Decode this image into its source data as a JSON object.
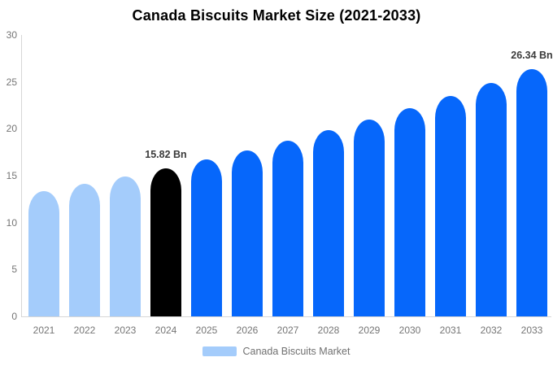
{
  "title": "Canada Biscuits Market Size (2021-2033)",
  "legend": {
    "label": "Canada Biscuits Market"
  },
  "colors": {
    "past": "#a4ccfb",
    "current": "#000000",
    "forecast": "#0667fb",
    "axis_line": "#d6d6d6",
    "tick_text": "#757575",
    "value_label_text": "#3b3b3b"
  },
  "chart_data": {
    "type": "bar",
    "title": "Canada Biscuits Market Size (2021-2033)",
    "xlabel": "",
    "ylabel": "",
    "categories": [
      "2021",
      "2022",
      "2023",
      "2024",
      "2025",
      "2026",
      "2027",
      "2028",
      "2029",
      "2030",
      "2031",
      "2032",
      "2033"
    ],
    "values": [
      13.34,
      14.12,
      14.94,
      15.82,
      16.74,
      17.72,
      18.75,
      19.84,
      21.0,
      22.22,
      23.52,
      24.89,
      26.34
    ],
    "bar_roles": [
      "past",
      "past",
      "past",
      "current",
      "forecast",
      "forecast",
      "forecast",
      "forecast",
      "forecast",
      "forecast",
      "forecast",
      "forecast",
      "forecast"
    ],
    "annotations": [
      {
        "category": "2024",
        "text": "15.82 Bn"
      },
      {
        "category": "2033",
        "text": "26.34 Bn"
      }
    ],
    "ylim": [
      0,
      30
    ],
    "yticks": [
      0,
      5,
      10,
      15,
      20,
      25,
      30
    ],
    "grid": false,
    "legend_position": "bottom",
    "unit": "Bn"
  }
}
